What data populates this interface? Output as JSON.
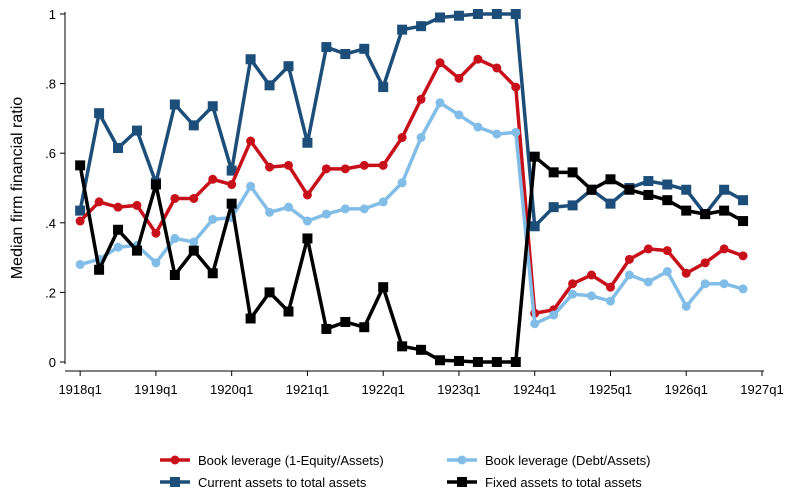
{
  "chart_data": {
    "type": "line",
    "y_label": "Median firm financial ratio",
    "x": [
      0,
      1,
      2,
      3,
      4,
      5,
      6,
      7,
      8,
      9,
      10,
      11,
      12,
      13,
      14,
      15,
      16,
      17,
      18,
      19,
      20,
      21,
      22,
      23,
      24,
      25,
      26,
      27,
      28,
      29,
      30,
      31,
      32,
      33,
      34,
      35
    ],
    "xlim": [
      -0.8,
      36
    ],
    "xticks": [
      {
        "value": 0,
        "label": "1918q1"
      },
      {
        "value": 4,
        "label": "1919q1"
      },
      {
        "value": 8,
        "label": "1920q1"
      },
      {
        "value": 12,
        "label": "1921q1"
      },
      {
        "value": 16,
        "label": "1922q1"
      },
      {
        "value": 20,
        "label": "1923q1"
      },
      {
        "value": 24,
        "label": "1924q1"
      },
      {
        "value": 28,
        "label": "1925q1"
      },
      {
        "value": 32,
        "label": "1926q1"
      },
      {
        "value": 36,
        "label": "1927q1"
      }
    ],
    "ylim": [
      0,
      1
    ],
    "yticks": [
      0,
      {
        "value": 0.2,
        "label": ".2"
      },
      {
        "value": 0.4,
        "label": ".4"
      },
      {
        "value": 0.6,
        "label": ".6"
      },
      {
        "value": 0.8,
        "label": ".8"
      },
      1
    ],
    "grid": false,
    "series": [
      {
        "name": "Book leverage (1-Equity/Assets)",
        "color": "#c8101a",
        "marker": "circle",
        "values": [
          0.405,
          0.46,
          0.445,
          0.45,
          0.37,
          0.47,
          0.47,
          0.525,
          0.51,
          0.635,
          0.56,
          0.565,
          0.48,
          0.555,
          0.555,
          0.565,
          0.565,
          0.645,
          0.755,
          0.86,
          0.815,
          0.87,
          0.845,
          0.79,
          0.14,
          0.15,
          0.225,
          0.25,
          0.215,
          0.295,
          0.325,
          0.32,
          0.255,
          0.285,
          0.325,
          0.305
        ]
      },
      {
        "name": "Book leverage (Debt/Assets)",
        "color": "#82bde8",
        "marker": "circle",
        "values": [
          0.28,
          0.295,
          0.33,
          0.335,
          0.285,
          0.355,
          0.345,
          0.41,
          0.415,
          0.505,
          0.43,
          0.445,
          0.405,
          0.425,
          0.44,
          0.44,
          0.46,
          0.515,
          0.645,
          0.745,
          0.71,
          0.675,
          0.655,
          0.66,
          0.11,
          0.135,
          0.195,
          0.19,
          0.175,
          0.25,
          0.23,
          0.26,
          0.16,
          0.225,
          0.225,
          0.21
        ]
      },
      {
        "name": "Current assets to total assets",
        "color": "#1d4e7a",
        "marker": "square",
        "values": [
          0.435,
          0.715,
          0.615,
          0.665,
          0.515,
          0.74,
          0.68,
          0.735,
          0.55,
          0.87,
          0.795,
          0.85,
          0.63,
          0.905,
          0.885,
          0.9,
          0.79,
          0.955,
          0.965,
          0.99,
          0.995,
          1,
          1,
          1,
          0.39,
          0.445,
          0.45,
          0.495,
          0.455,
          0.5,
          0.52,
          0.51,
          0.495,
          0.425,
          0.495,
          0.465
        ]
      },
      {
        "name": "Fixed assets to total assets",
        "color": "#000000",
        "marker": "square",
        "values": [
          0.565,
          0.265,
          0.38,
          0.32,
          0.51,
          0.25,
          0.32,
          0.255,
          0.455,
          0.125,
          0.2,
          0.145,
          0.355,
          0.095,
          0.115,
          0.1,
          0.215,
          0.045,
          0.035,
          0.005,
          0.003,
          0,
          0,
          0,
          0.59,
          0.545,
          0.545,
          0.495,
          0.525,
          0.495,
          0.48,
          0.465,
          0.435,
          0.425,
          0.435,
          0.405
        ]
      }
    ]
  }
}
